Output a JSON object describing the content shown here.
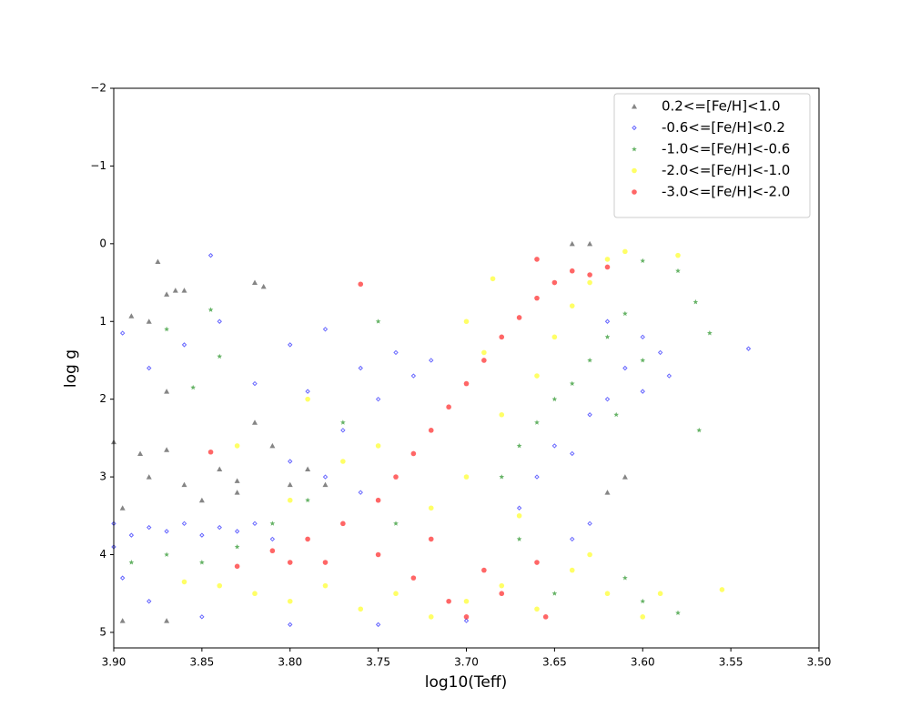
{
  "chart_data": {
    "type": "scatter",
    "xlabel": "log10(Teff)",
    "ylabel": "log g",
    "xlim": [
      3.9,
      3.5
    ],
    "ylim": [
      5.2,
      -2
    ],
    "xticks": [
      {
        "value": 3.9,
        "label": "3.90"
      },
      {
        "value": 3.85,
        "label": "3.85"
      },
      {
        "value": 3.8,
        "label": "3.80"
      },
      {
        "value": 3.75,
        "label": "3.75"
      },
      {
        "value": 3.7,
        "label": "3.70"
      },
      {
        "value": 3.65,
        "label": "3.65"
      },
      {
        "value": 3.6,
        "label": "3.60"
      },
      {
        "value": 3.55,
        "label": "3.55"
      },
      {
        "value": 3.5,
        "label": "3.50"
      }
    ],
    "yticks": [
      {
        "value": -2,
        "label": "−2"
      },
      {
        "value": -1,
        "label": "−1"
      },
      0,
      1,
      2,
      3,
      4,
      5
    ],
    "legend": "upper right",
    "series": [
      {
        "name": "0.2<=[Fe/H]<1.0",
        "color": "#333333",
        "marker": "^",
        "x": [
          3.875,
          3.87,
          3.865,
          3.86,
          3.82,
          3.815,
          3.89,
          3.88,
          3.87,
          3.9,
          3.885,
          3.87,
          3.84,
          3.82,
          3.81,
          3.8,
          3.86,
          3.88,
          3.895,
          3.85,
          3.83,
          3.78,
          3.895,
          3.87,
          3.64,
          3.63,
          3.61,
          3.62,
          3.79,
          3.83
        ],
        "values": [
          0.23,
          0.65,
          0.6,
          0.6,
          0.5,
          0.55,
          0.93,
          1.0,
          1.9,
          2.55,
          2.7,
          2.65,
          2.9,
          2.3,
          2.6,
          3.1,
          3.1,
          3.0,
          3.4,
          3.3,
          3.2,
          3.1,
          4.85,
          4.85,
          0.0,
          0.0,
          3.0,
          3.2,
          2.9,
          3.05
        ]
      },
      {
        "name": "-0.6<=[Fe/H]<0.2",
        "color": "#0000ff",
        "marker": "D",
        "x": [
          3.9,
          3.89,
          3.88,
          3.87,
          3.86,
          3.85,
          3.84,
          3.83,
          3.82,
          3.81,
          3.895,
          3.88,
          3.85,
          3.8,
          3.75,
          3.7,
          3.895,
          3.88,
          3.86,
          3.84,
          3.845,
          3.82,
          3.8,
          3.79,
          3.78,
          3.77,
          3.76,
          3.75,
          3.74,
          3.73,
          3.72,
          3.8,
          3.78,
          3.76,
          3.67,
          3.66,
          3.65,
          3.64,
          3.63,
          3.62,
          3.61,
          3.6,
          3.59,
          3.585,
          3.6,
          3.62,
          3.64,
          3.63,
          3.54,
          3.9
        ],
        "values": [
          3.6,
          3.75,
          3.65,
          3.7,
          3.6,
          3.75,
          3.65,
          3.7,
          3.6,
          3.8,
          4.3,
          4.6,
          4.8,
          4.9,
          4.9,
          4.85,
          1.15,
          1.6,
          1.3,
          1.0,
          0.15,
          1.8,
          1.3,
          1.9,
          1.1,
          2.4,
          1.6,
          2.0,
          1.4,
          1.7,
          1.5,
          2.8,
          3.0,
          3.2,
          3.4,
          3.0,
          2.6,
          2.7,
          2.2,
          2.0,
          1.6,
          1.9,
          1.4,
          1.7,
          1.2,
          1.0,
          3.8,
          3.6,
          1.35,
          3.9
        ]
      },
      {
        "name": "-1.0<=[Fe/H]<-0.6",
        "color": "#008000",
        "marker": "*",
        "x": [
          3.89,
          3.87,
          3.85,
          3.83,
          3.81,
          3.79,
          3.77,
          3.74,
          3.68,
          3.67,
          3.66,
          3.65,
          3.64,
          3.63,
          3.62,
          3.61,
          3.6,
          3.615,
          3.6,
          3.58,
          3.57,
          3.562,
          3.568,
          3.87,
          3.845,
          3.855,
          3.84,
          3.6,
          3.58,
          3.61,
          3.65,
          3.67,
          3.75
        ],
        "values": [
          4.1,
          4.0,
          4.1,
          3.9,
          3.6,
          3.3,
          2.3,
          3.6,
          3.0,
          2.6,
          2.3,
          2.0,
          1.8,
          1.5,
          1.2,
          0.9,
          1.5,
          2.2,
          0.22,
          0.35,
          0.75,
          1.15,
          2.4,
          1.1,
          0.85,
          1.85,
          1.45,
          4.6,
          4.75,
          4.3,
          4.5,
          3.8,
          1.0
        ]
      },
      {
        "name": "-2.0<=[Fe/H]<-1.0",
        "color": "#ffff00",
        "marker": "o",
        "x": [
          3.86,
          3.84,
          3.82,
          3.8,
          3.78,
          3.76,
          3.74,
          3.72,
          3.7,
          3.68,
          3.66,
          3.64,
          3.62,
          3.6,
          3.59,
          3.8,
          3.77,
          3.75,
          3.72,
          3.7,
          3.68,
          3.66,
          3.65,
          3.64,
          3.63,
          3.62,
          3.61,
          3.69,
          3.7,
          3.685,
          3.58,
          3.555,
          3.83,
          3.79,
          3.67,
          3.63
        ],
        "values": [
          4.35,
          4.4,
          4.5,
          4.6,
          4.4,
          4.7,
          4.5,
          4.8,
          4.6,
          4.4,
          4.7,
          4.2,
          4.5,
          4.8,
          4.5,
          3.3,
          2.8,
          2.6,
          3.4,
          3.0,
          2.2,
          1.7,
          1.2,
          0.8,
          0.5,
          0.2,
          0.1,
          1.4,
          1.0,
          0.45,
          0.15,
          4.45,
          2.6,
          2.0,
          3.5,
          4.0
        ]
      },
      {
        "name": "-3.0<=[Fe/H]<-2.0",
        "color": "#ff0000",
        "marker": "o",
        "x": [
          3.83,
          3.81,
          3.79,
          3.77,
          3.75,
          3.74,
          3.73,
          3.72,
          3.71,
          3.7,
          3.69,
          3.68,
          3.67,
          3.66,
          3.65,
          3.64,
          3.63,
          3.62,
          3.66,
          3.76,
          3.845,
          3.75,
          3.73,
          3.71,
          3.7,
          3.69,
          3.72,
          3.68,
          3.655,
          3.66,
          3.78,
          3.8
        ],
        "values": [
          4.15,
          3.95,
          3.8,
          3.6,
          3.3,
          3.0,
          2.7,
          2.4,
          2.1,
          1.8,
          1.5,
          1.2,
          0.95,
          0.7,
          0.5,
          0.35,
          0.4,
          0.3,
          0.2,
          0.52,
          2.68,
          4.0,
          4.3,
          4.6,
          4.8,
          4.2,
          3.8,
          4.5,
          4.8,
          4.1,
          4.1,
          4.1
        ]
      }
    ]
  }
}
